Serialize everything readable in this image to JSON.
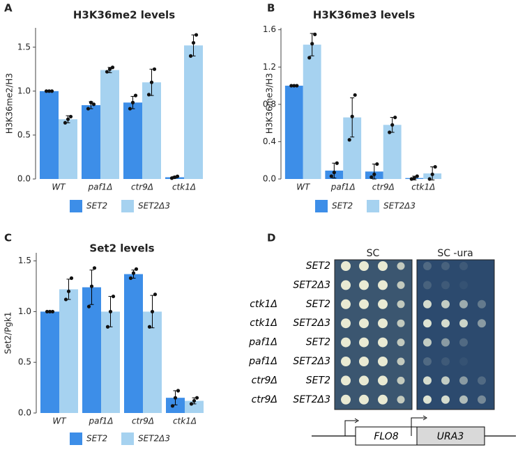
{
  "chart_data": [
    {
      "type": "bar",
      "label": "A",
      "title": "H3K36me2 levels",
      "ylabel": "H3K36me2/H3",
      "categories": [
        "WT",
        "paf1Δ",
        "ctr9Δ",
        "ctk1Δ"
      ],
      "series": [
        {
          "name": "SET2",
          "color": "#3d8ee8",
          "values": [
            1.0,
            0.84,
            0.87,
            0.02
          ],
          "errors": [
            0,
            0.04,
            0.07,
            0.01
          ],
          "points": [
            [
              1.0,
              1.0,
              1.0
            ],
            [
              0.8,
              0.87,
              0.85
            ],
            [
              0.8,
              0.87,
              0.95
            ],
            [
              0.01,
              0.02,
              0.03
            ]
          ]
        },
        {
          "name": "SET2Δ3",
          "color": "#a6d2f0",
          "values": [
            0.68,
            1.24,
            1.1,
            1.52
          ],
          "errors": [
            0.04,
            0.03,
            0.15,
            0.12
          ],
          "points": [
            [
              0.64,
              0.68,
              0.71
            ],
            [
              1.22,
              1.25,
              1.27
            ],
            [
              0.96,
              1.1,
              1.25
            ],
            [
              1.4,
              1.55,
              1.64
            ]
          ]
        }
      ],
      "ylim": [
        0,
        1.72
      ],
      "yticks": [
        {
          "value": 0,
          "label": "0.0"
        },
        0.5,
        {
          "value": 1,
          "label": "1.0"
        },
        1.5
      ]
    },
    {
      "type": "bar",
      "label": "B",
      "title": "H3K36me3 levels",
      "ylabel": "H3K36me3/H3",
      "categories": [
        "WT",
        "paf1Δ",
        "ctr9Δ",
        "ctk1Δ"
      ],
      "series": [
        {
          "name": "SET2",
          "color": "#3d8ee8",
          "values": [
            1.0,
            0.09,
            0.08,
            0.01
          ],
          "errors": [
            0,
            0.08,
            0.08,
            0.02
          ],
          "points": [
            [
              1.0,
              1.0,
              1.0
            ],
            [
              0.03,
              0.07,
              0.17
            ],
            [
              0.02,
              0.05,
              0.16
            ],
            [
              0,
              0.01,
              0.03
            ]
          ]
        },
        {
          "name": "SET2Δ3",
          "color": "#a6d2f0",
          "values": [
            1.44,
            0.66,
            0.58,
            0.06
          ],
          "errors": [
            0.12,
            0.21,
            0.08,
            0.07
          ],
          "points": [
            [
              1.3,
              1.45,
              1.55
            ],
            [
              0.42,
              0.67,
              0.9
            ],
            [
              0.5,
              0.58,
              0.66
            ],
            [
              0,
              0.05,
              0.13
            ]
          ]
        }
      ],
      "ylim": [
        0,
        1.62
      ],
      "yticks": [
        {
          "value": 0,
          "label": "0.0"
        },
        0.4,
        0.8,
        1.2,
        1.6
      ]
    },
    {
      "type": "bar",
      "label": "C",
      "title": "Set2 levels",
      "ylabel": "Set2/Pgk1",
      "categories": [
        "WT",
        "paf1Δ",
        "ctr9Δ",
        "ctk1Δ"
      ],
      "series": [
        {
          "name": "SET2",
          "color": "#3d8ee8",
          "values": [
            1.0,
            1.24,
            1.37,
            0.15
          ],
          "errors": [
            0,
            0.17,
            0.04,
            0.07
          ],
          "points": [
            [
              1.0,
              1.0,
              1.0
            ],
            [
              1.05,
              1.25,
              1.43
            ],
            [
              1.33,
              1.38,
              1.42
            ],
            [
              0.07,
              0.15,
              0.22
            ]
          ]
        },
        {
          "name": "SET2Δ3",
          "color": "#a6d2f0",
          "values": [
            1.22,
            1.0,
            1.0,
            0.12
          ],
          "errors": [
            0.1,
            0.15,
            0.16,
            0.03
          ],
          "points": [
            [
              1.12,
              1.2,
              1.33
            ],
            [
              0.85,
              1.0,
              1.15
            ],
            [
              0.85,
              1.0,
              1.17
            ],
            [
              0.09,
              0.12,
              0.15
            ]
          ]
        }
      ],
      "ylim": [
        0,
        1.58
      ],
      "yticks": [
        {
          "value": 0,
          "label": "0.0"
        },
        0.5,
        {
          "value": 1,
          "label": "1.0"
        },
        1.5
      ]
    }
  ],
  "panel_d": {
    "label": "D",
    "columns": [
      "SC",
      "SC -ura"
    ],
    "rows": [
      {
        "genotype": "SET2"
      },
      {
        "genotype": "SET2Δ3"
      },
      {
        "background": "ctk1Δ",
        "genotype": "SET2"
      },
      {
        "background": "ctk1Δ",
        "genotype": "SET2Δ3"
      },
      {
        "background": "paf1Δ",
        "genotype": "SET2"
      },
      {
        "background": "paf1Δ",
        "genotype": "SET2Δ3"
      },
      {
        "background": "ctr9Δ",
        "genotype": "SET2"
      },
      {
        "background": "ctr9Δ",
        "genotype": "SET2Δ3"
      }
    ],
    "construct": [
      "FLO8",
      "URA3"
    ]
  }
}
